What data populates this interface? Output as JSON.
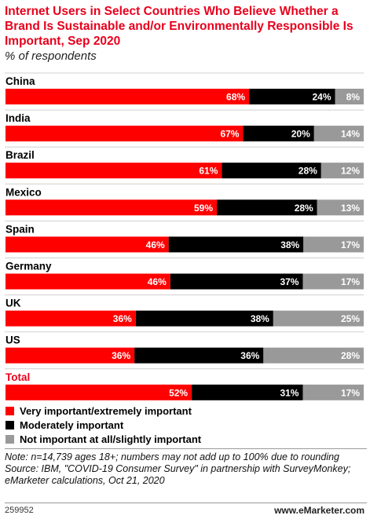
{
  "header": {
    "title": "Internet Users in Select Countries Who Believe Whether a Brand Is Sustainable and/or Environmentally Responsible Is Important, Sep 2020",
    "subtitle": "% of respondents"
  },
  "legend": {
    "items": [
      {
        "label": "Very important/extremely important",
        "color": "#ff0000"
      },
      {
        "label": "Moderately important",
        "color": "#000000"
      },
      {
        "label": "Not important at all/slightly important",
        "color": "#999999"
      }
    ]
  },
  "footer": {
    "note": "Note: n=14,739 ages 18+; numbers may not add up to 100% due to rounding",
    "source": "Source: IBM, \"COVID-19 Consumer Survey\" in partnership with SurveyMonkey; eMarketer calculations, Oct 21, 2020",
    "id": "259952",
    "brand": "www.eMarketer.com"
  },
  "chart_data": {
    "type": "bar",
    "orientation": "horizontal",
    "stacked": true,
    "title": "Internet Users in Select Countries Who Believe Whether a Brand Is Sustainable and/or Environmentally Responsible Is Important, Sep 2020",
    "subtitle": "% of respondents",
    "categories": [
      "China",
      "India",
      "Brazil",
      "Mexico",
      "Spain",
      "Germany",
      "UK",
      "US",
      "Total"
    ],
    "highlight_category": "Total",
    "series": [
      {
        "name": "Very important/extremely important",
        "color": "#ff0000",
        "values": [
          68,
          67,
          61,
          59,
          46,
          46,
          36,
          36,
          52
        ]
      },
      {
        "name": "Moderately important",
        "color": "#000000",
        "values": [
          24,
          20,
          28,
          28,
          38,
          37,
          38,
          36,
          31
        ]
      },
      {
        "name": "Not important at all/slightly important",
        "color": "#999999",
        "values": [
          8,
          14,
          12,
          13,
          17,
          17,
          25,
          28,
          17
        ]
      }
    ],
    "value_suffix": "%",
    "legend_position": "bottom-left",
    "grid": false
  }
}
